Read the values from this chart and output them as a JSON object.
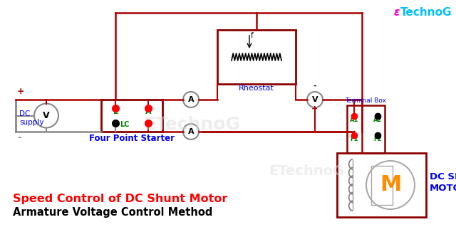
{
  "bg_color": "#ffffff",
  "title1": "Speed Control of DC Shunt Motor",
  "title2": "Armature Voltage Control Method",
  "title1_color": "red",
  "title2_color": "black",
  "brand_E": "ε",
  "brand_rest": "TechnoG",
  "brand_color_E": "#ff00cc",
  "brand_color_rest": "#00bfff",
  "watermark1": "ETechnoG",
  "watermark2": "ETechnoG",
  "wire_red": "#aa0000",
  "wire_gray": "#888888",
  "dark_red_box": "#8B0000",
  "four_point_label": "Four Point Starter",
  "rheostat_label": "Rheostat",
  "terminal_box_label": "Terminal Box",
  "dc_shunt_label1": "DC SHUNT",
  "dc_shunt_label2": "MOTOR",
  "dc_supply_label": "DC\nsupply"
}
